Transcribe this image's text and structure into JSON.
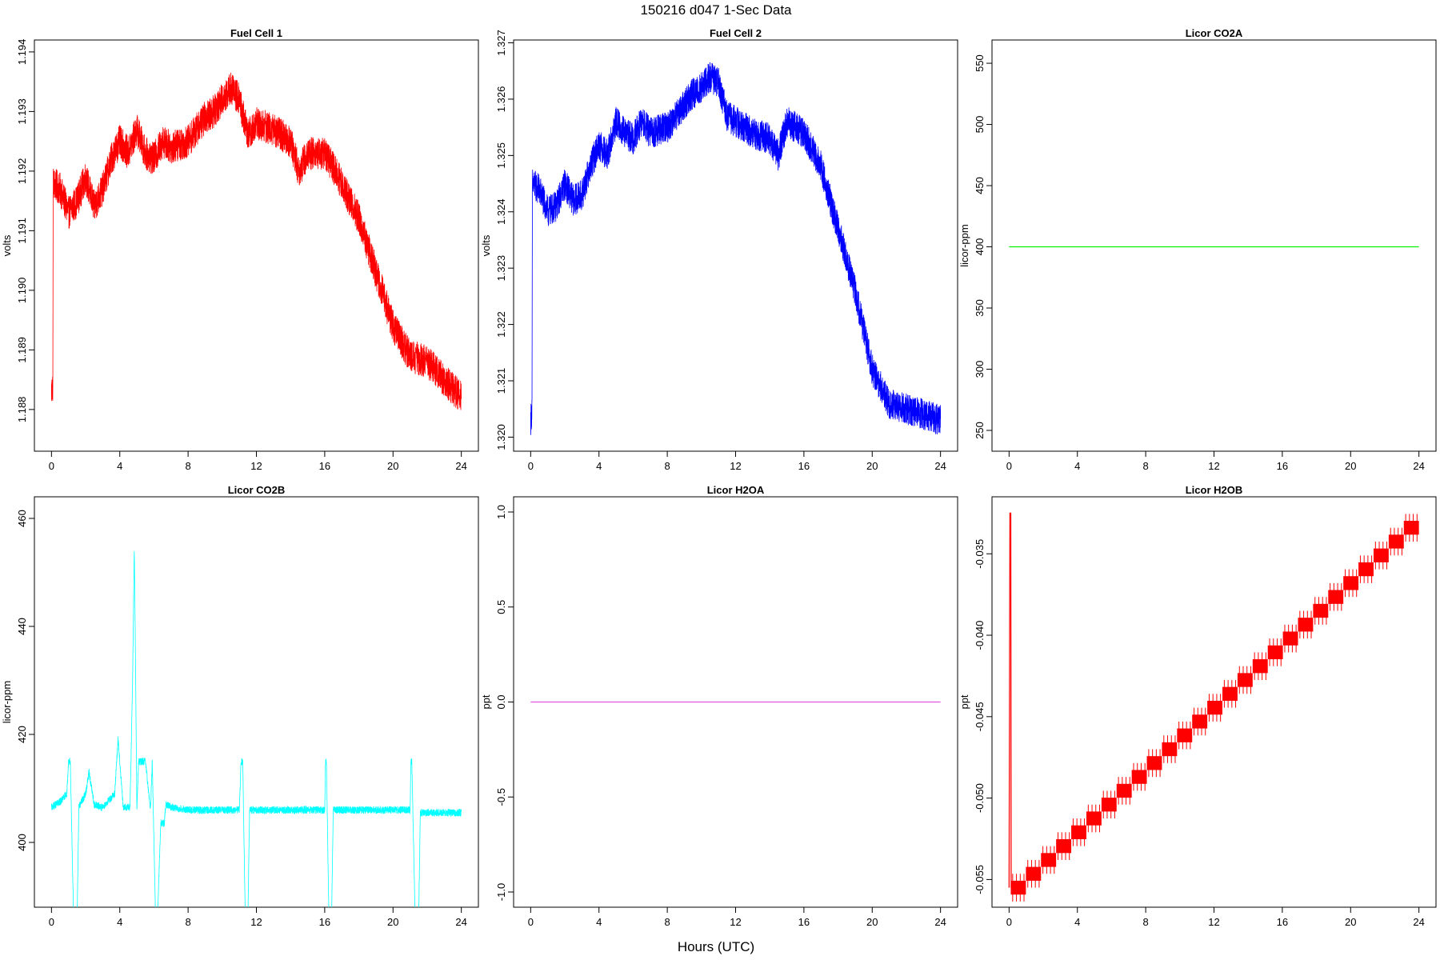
{
  "figure_title": "150216   d047   1-Sec Data",
  "x_axis_label": "Hours (UTC)",
  "chart_data": [
    {
      "type": "line",
      "title": "Fuel Cell 1",
      "xlabel": "",
      "ylabel": "volts",
      "color": "#ff0000",
      "xlim": [
        -1,
        25
      ],
      "ylim": [
        1.1873,
        1.1942
      ],
      "xticks": [
        0,
        4,
        8,
        12,
        16,
        20,
        24
      ],
      "yticks": [
        1.188,
        1.189,
        1.19,
        1.191,
        1.192,
        1.193,
        1.194
      ],
      "ytick_labels": [
        "1.188",
        "1.189",
        "1.190",
        "1.191",
        "1.192",
        "1.193",
        "1.194"
      ],
      "noise": 0.00028,
      "series": [
        {
          "x": [
            0,
            0.08,
            0.1,
            0.5,
            1,
            1.5,
            2,
            2.5,
            3,
            3.5,
            4,
            4.5,
            5,
            5.5,
            6,
            6.5,
            7,
            8,
            9,
            9.5,
            10,
            10.5,
            11,
            11.5,
            12,
            13,
            14,
            14.5,
            15,
            16,
            17,
            18,
            19,
            20,
            21,
            22,
            23,
            24
          ],
          "y": [
            1.1883,
            1.1884,
            1.1918,
            1.1917,
            1.1913,
            1.1915,
            1.1919,
            1.1914,
            1.1917,
            1.1922,
            1.1925,
            1.1923,
            1.1927,
            1.1923,
            1.1922,
            1.1925,
            1.1924,
            1.1925,
            1.1929,
            1.193,
            1.1932,
            1.1934,
            1.1932,
            1.1926,
            1.1928,
            1.1927,
            1.1925,
            1.192,
            1.1923,
            1.1923,
            1.1918,
            1.1912,
            1.1903,
            1.1894,
            1.1889,
            1.1888,
            1.1885,
            1.1882
          ]
        }
      ]
    },
    {
      "type": "line",
      "title": "Fuel Cell 2",
      "xlabel": "",
      "ylabel": "volts",
      "color": "#0000ff",
      "xlim": [
        -1,
        25
      ],
      "ylim": [
        1.31975,
        1.32705
      ],
      "xticks": [
        0,
        4,
        8,
        12,
        16,
        20,
        24
      ],
      "yticks": [
        1.32,
        1.321,
        1.322,
        1.323,
        1.324,
        1.325,
        1.326,
        1.327
      ],
      "ytick_labels": [
        "1.320",
        "1.321",
        "1.322",
        "1.323",
        "1.324",
        "1.325",
        "1.326",
        "1.327"
      ],
      "noise": 0.00028,
      "series": [
        {
          "x": [
            0,
            0.08,
            0.1,
            0.5,
            1,
            1.5,
            2,
            2.5,
            3,
            3.5,
            4,
            4.5,
            5,
            5.5,
            6,
            6.5,
            7,
            8,
            9,
            9.5,
            10,
            10.5,
            11,
            11.5,
            12,
            13,
            14,
            14.5,
            15,
            16,
            17,
            18,
            19,
            20,
            21,
            22,
            23,
            24
          ],
          "y": [
            1.3203,
            1.3205,
            1.3245,
            1.3244,
            1.324,
            1.3241,
            1.3245,
            1.3242,
            1.3243,
            1.3248,
            1.3252,
            1.325,
            1.3256,
            1.3254,
            1.3253,
            1.3256,
            1.3254,
            1.3255,
            1.3259,
            1.3261,
            1.3262,
            1.3264,
            1.3263,
            1.3257,
            1.3256,
            1.3254,
            1.3253,
            1.325,
            1.3256,
            1.3254,
            1.3248,
            1.3237,
            1.3226,
            1.3212,
            1.3206,
            1.3205,
            1.3204,
            1.3203
          ]
        }
      ]
    },
    {
      "type": "line",
      "title": "Licor CO2A",
      "xlabel": "",
      "ylabel": "licor-ppm",
      "color": "#00ee00",
      "xlim": [
        -1,
        25
      ],
      "ylim": [
        233,
        569
      ],
      "xticks": [
        0,
        4,
        8,
        12,
        16,
        20,
        24
      ],
      "yticks": [
        250,
        300,
        350,
        400,
        450,
        500,
        550
      ],
      "ytick_labels": [
        "250",
        "300",
        "350",
        "400",
        "450",
        "500",
        "550"
      ],
      "noise": 0,
      "series": [
        {
          "x": [
            0,
            24
          ],
          "y": [
            400,
            400
          ]
        }
      ]
    },
    {
      "type": "line",
      "title": "Licor CO2B",
      "xlabel": "",
      "ylabel": "licor-ppm",
      "color": "#00ffff",
      "xlim": [
        -1,
        25
      ],
      "ylim": [
        388,
        464
      ],
      "xticks": [
        0,
        4,
        8,
        12,
        16,
        20,
        24
      ],
      "yticks": [
        400,
        420,
        440,
        460
      ],
      "ytick_labels": [
        "400",
        "420",
        "440",
        "460"
      ],
      "noise": 0.7,
      "series": [
        {
          "x": [
            0,
            0.5,
            0.9,
            1.0,
            1.1,
            1.3,
            1.5,
            1.6,
            2,
            2.2,
            2.5,
            3,
            3.7,
            3.9,
            4.2,
            4.6,
            4.75,
            4.85,
            4.9,
            5.0,
            5.1,
            5.2,
            5.5,
            5.8,
            5.9,
            6.1,
            6.2,
            6.4,
            6.6,
            6.7,
            7,
            8,
            9,
            10,
            11,
            11.1,
            11.2,
            11.35,
            11.5,
            11.6,
            12,
            13,
            14,
            15,
            16,
            16.05,
            16.1,
            16.25,
            16.4,
            16.5,
            17,
            18,
            19,
            20,
            21,
            21.05,
            21.1,
            21.3,
            21.5,
            21.6,
            22,
            23,
            24
          ],
          "y": [
            406.5,
            407.5,
            409,
            415,
            415,
            385.5,
            385.5,
            406.5,
            409,
            413,
            407,
            406.5,
            409,
            419,
            406.5,
            406.5,
            430,
            455,
            440,
            406,
            415,
            415,
            415,
            406,
            415,
            385.5,
            385.5,
            403.5,
            403.5,
            407,
            406.5,
            406,
            406,
            406,
            406,
            415,
            415,
            385.5,
            385.5,
            406,
            406,
            406,
            406,
            406,
            406,
            415,
            415,
            385.5,
            385.5,
            406,
            406,
            406,
            406,
            406,
            406,
            415,
            415,
            385.5,
            385.5,
            405.5,
            405.5,
            405.5,
            405.5
          ]
        }
      ]
    },
    {
      "type": "line",
      "title": "Licor H2OA",
      "xlabel": "",
      "ylabel": "ppt",
      "color": "#dd55dd",
      "xlim": [
        -1,
        25
      ],
      "ylim": [
        -1.08,
        1.08
      ],
      "xticks": [
        0,
        4,
        8,
        12,
        16,
        20,
        24
      ],
      "yticks": [
        -1.0,
        -0.5,
        0.0,
        0.5,
        1.0
      ],
      "ytick_labels": [
        "-1.0",
        "-0.5",
        "0.0",
        "0.5",
        "1.0"
      ],
      "noise": 0,
      "series": [
        {
          "x": [
            0,
            24
          ],
          "y": [
            0,
            0
          ]
        }
      ]
    },
    {
      "type": "line",
      "title": "Licor H2OB",
      "xlabel": "",
      "ylabel": "ppt",
      "color": "#ff0000",
      "xlim": [
        -1,
        25
      ],
      "ylim": [
        -0.0567,
        -0.0315
      ],
      "xticks": [
        0,
        4,
        8,
        12,
        16,
        20,
        24
      ],
      "yticks": [
        -0.055,
        -0.05,
        -0.045,
        -0.04,
        -0.035
      ],
      "ytick_labels": [
        "-0.055",
        "-0.050",
        "-0.045",
        "-0.040",
        "-0.035"
      ],
      "noise": 0,
      "steps": {
        "start": -0.0555,
        "end": -0.0335,
        "step": 0.00085,
        "band": 0.00085,
        "from": 0.1,
        "to": 24
      },
      "series": [
        {
          "x": [
            0,
            0.05,
            0.1,
            0.12
          ],
          "y": [
            -0.0555,
            -0.0325,
            -0.0325,
            -0.0555
          ]
        }
      ]
    }
  ]
}
